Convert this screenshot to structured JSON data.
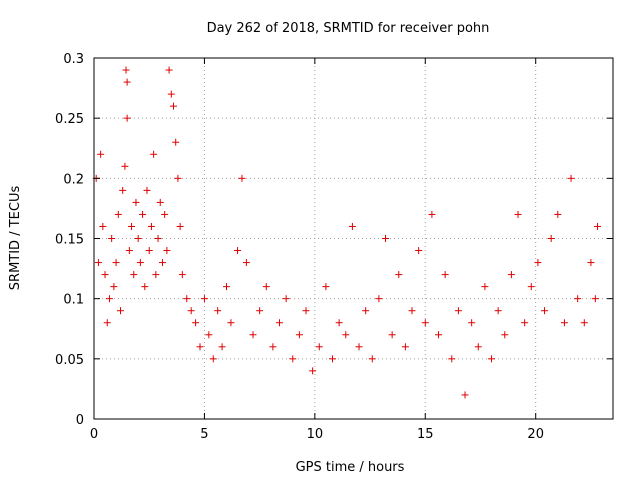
{
  "chart_data": {
    "type": "scatter",
    "title": "Day 262 of 2018, SRMTID for receiver pohn",
    "xlabel": "GPS time / hours",
    "ylabel": "SRMTID / TECUs",
    "xlim": [
      0,
      23.5
    ],
    "ylim": [
      0,
      0.3
    ],
    "x_ticks": [
      0,
      5,
      10,
      15,
      20
    ],
    "y_ticks": [
      0,
      0.05,
      0.1,
      0.15,
      0.2,
      0.25,
      0.3
    ],
    "x_tick_labels": [
      "0",
      "5",
      "10",
      "15",
      "20"
    ],
    "y_tick_labels": [
      "0",
      "0.05",
      "0.1",
      "0.15",
      "0.2",
      "0.25",
      "0.3"
    ],
    "grid": true,
    "marker": "+",
    "series": [
      {
        "name": "SRMTID",
        "color": "#e00000",
        "points": [
          [
            0.1,
            0.2
          ],
          [
            0.2,
            0.13
          ],
          [
            0.3,
            0.22
          ],
          [
            0.4,
            0.16
          ],
          [
            0.5,
            0.12
          ],
          [
            0.6,
            0.08
          ],
          [
            0.7,
            0.1
          ],
          [
            0.8,
            0.15
          ],
          [
            0.9,
            0.11
          ],
          [
            1.0,
            0.13
          ],
          [
            1.1,
            0.17
          ],
          [
            1.2,
            0.09
          ],
          [
            1.3,
            0.19
          ],
          [
            1.4,
            0.21
          ],
          [
            1.45,
            0.29
          ],
          [
            1.5,
            0.28
          ],
          [
            1.5,
            0.25
          ],
          [
            1.6,
            0.14
          ],
          [
            1.7,
            0.16
          ],
          [
            1.8,
            0.12
          ],
          [
            1.9,
            0.18
          ],
          [
            2.0,
            0.15
          ],
          [
            2.1,
            0.13
          ],
          [
            2.2,
            0.17
          ],
          [
            2.3,
            0.11
          ],
          [
            2.4,
            0.19
          ],
          [
            2.5,
            0.14
          ],
          [
            2.6,
            0.16
          ],
          [
            2.7,
            0.22
          ],
          [
            2.8,
            0.12
          ],
          [
            2.9,
            0.15
          ],
          [
            3.0,
            0.18
          ],
          [
            3.1,
            0.13
          ],
          [
            3.2,
            0.17
          ],
          [
            3.3,
            0.14
          ],
          [
            3.4,
            0.29
          ],
          [
            3.5,
            0.27
          ],
          [
            3.6,
            0.26
          ],
          [
            3.7,
            0.23
          ],
          [
            3.8,
            0.2
          ],
          [
            3.9,
            0.16
          ],
          [
            4.0,
            0.12
          ],
          [
            4.2,
            0.1
          ],
          [
            4.4,
            0.09
          ],
          [
            4.6,
            0.08
          ],
          [
            4.8,
            0.06
          ],
          [
            5.0,
            0.1
          ],
          [
            5.2,
            0.07
          ],
          [
            5.4,
            0.05
          ],
          [
            5.6,
            0.09
          ],
          [
            5.8,
            0.06
          ],
          [
            6.0,
            0.11
          ],
          [
            6.2,
            0.08
          ],
          [
            6.5,
            0.14
          ],
          [
            6.7,
            0.2
          ],
          [
            6.9,
            0.13
          ],
          [
            7.2,
            0.07
          ],
          [
            7.5,
            0.09
          ],
          [
            7.8,
            0.11
          ],
          [
            8.1,
            0.06
          ],
          [
            8.4,
            0.08
          ],
          [
            8.7,
            0.1
          ],
          [
            9.0,
            0.05
          ],
          [
            9.3,
            0.07
          ],
          [
            9.6,
            0.09
          ],
          [
            9.9,
            0.04
          ],
          [
            10.2,
            0.06
          ],
          [
            10.5,
            0.11
          ],
          [
            10.8,
            0.05
          ],
          [
            11.1,
            0.08
          ],
          [
            11.4,
            0.07
          ],
          [
            11.7,
            0.16
          ],
          [
            12.0,
            0.06
          ],
          [
            12.3,
            0.09
          ],
          [
            12.6,
            0.05
          ],
          [
            12.9,
            0.1
          ],
          [
            13.2,
            0.15
          ],
          [
            13.5,
            0.07
          ],
          [
            13.8,
            0.12
          ],
          [
            14.1,
            0.06
          ],
          [
            14.4,
            0.09
          ],
          [
            14.7,
            0.14
          ],
          [
            15.0,
            0.08
          ],
          [
            15.3,
            0.17
          ],
          [
            15.6,
            0.07
          ],
          [
            15.9,
            0.12
          ],
          [
            16.2,
            0.05
          ],
          [
            16.5,
            0.09
          ],
          [
            16.8,
            0.02
          ],
          [
            17.1,
            0.08
          ],
          [
            17.4,
            0.06
          ],
          [
            17.7,
            0.11
          ],
          [
            18.0,
            0.05
          ],
          [
            18.3,
            0.09
          ],
          [
            18.6,
            0.07
          ],
          [
            18.9,
            0.12
          ],
          [
            19.2,
            0.17
          ],
          [
            19.5,
            0.08
          ],
          [
            19.8,
            0.11
          ],
          [
            20.1,
            0.13
          ],
          [
            20.4,
            0.09
          ],
          [
            20.7,
            0.15
          ],
          [
            21.0,
            0.17
          ],
          [
            21.3,
            0.08
          ],
          [
            21.6,
            0.2
          ],
          [
            21.9,
            0.1
          ],
          [
            22.2,
            0.08
          ],
          [
            22.5,
            0.13
          ],
          [
            22.7,
            0.1
          ],
          [
            22.8,
            0.16
          ]
        ]
      }
    ]
  }
}
